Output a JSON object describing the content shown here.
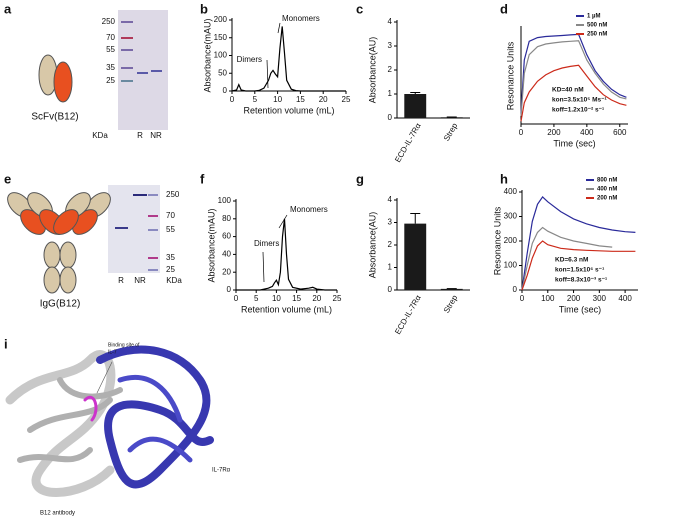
{
  "panels": [
    "a",
    "b",
    "c",
    "d",
    "e",
    "f",
    "g",
    "h",
    "i"
  ],
  "gel_a": {
    "label": "ScFv(B12)",
    "markers": [
      "250",
      "70",
      "55",
      "35",
      "25"
    ],
    "unit": "KDa",
    "lanes": [
      "R",
      "NR"
    ]
  },
  "gel_e": {
    "label": "IgG(B12)",
    "markers": [
      "250",
      "70",
      "55",
      "35",
      "25"
    ],
    "unit": "KDa",
    "lanes": [
      "R",
      "NR"
    ]
  },
  "structure": {
    "site_label": [
      "Binding site of",
      "IL-7"
    ],
    "antibody_label": "B12 antibody",
    "receptor_label": "IL-7Rα"
  },
  "chart_data": [
    {
      "type": "line",
      "xlabel": "Retention volume (mL)",
      "ylabel": "Absorbance(mAU)",
      "x": [
        0,
        1,
        1.5,
        2,
        3,
        5,
        6,
        7,
        8,
        8.5,
        9,
        9.5,
        10,
        10.5,
        11,
        11.5,
        12,
        13,
        14,
        15,
        17,
        20,
        23,
        25
      ],
      "series": [
        {
          "color": "#000000",
          "values": [
            0,
            3,
            18,
            3,
            0,
            0,
            2,
            8,
            30,
            50,
            58,
            48,
            40,
            120,
            182,
            110,
            30,
            5,
            1,
            0,
            0,
            0,
            0,
            0
          ]
        }
      ],
      "xlim": [
        0,
        25
      ],
      "ylim": [
        0,
        200
      ],
      "xticks": [
        0,
        5,
        10,
        15,
        20,
        25
      ],
      "yticks": [
        0,
        50,
        100,
        150,
        200
      ],
      "annotations": [
        "Dimers",
        "Monomers"
      ]
    },
    {
      "type": "bar",
      "ylabel": "Absorbance(AU)",
      "categories": [
        "ECD-IL-7Rα",
        "Strep"
      ],
      "values": [
        1.0,
        0.03
      ],
      "errors": [
        0.06,
        0.01
      ],
      "color": "#1a1a1a",
      "ylim": [
        0,
        4
      ],
      "yticks": [
        0,
        1,
        2,
        3,
        4
      ]
    },
    {
      "type": "line",
      "xlabel": "Time (sec)",
      "ylabel": "Resonance Units",
      "x": [
        0,
        20,
        50,
        100,
        150,
        200,
        250,
        300,
        350,
        400,
        450,
        500,
        550,
        600,
        640
      ],
      "series": [
        {
          "name": "1 µM",
          "color": "#2a2a9a",
          "values": [
            20,
            120,
            155,
            162,
            164,
            165,
            166,
            167,
            168,
            130,
            100,
            80,
            65,
            55,
            50
          ]
        },
        {
          "name": "500 nM",
          "color": "#888888",
          "values": [
            15,
            95,
            130,
            145,
            150,
            152,
            154,
            155,
            156,
            120,
            95,
            75,
            60,
            50,
            47
          ]
        },
        {
          "name": "250 nM",
          "color": "#cc2a1a",
          "values": [
            5,
            40,
            60,
            80,
            92,
            100,
            105,
            108,
            110,
            90,
            70,
            55,
            45,
            38,
            35
          ]
        }
      ],
      "xlim": [
        0,
        650
      ],
      "ylim": [
        0,
        180
      ],
      "xticks": [
        0,
        200,
        400,
        600
      ],
      "annotations": [
        "KD=40 nM",
        "kon=3.5x10⁵ Ms⁻¹",
        "koff=1.2x10⁻² s⁻¹"
      ]
    },
    {
      "type": "line",
      "xlabel": "Retention volume (mL)",
      "ylabel": "Absorbance(mAU)",
      "x": [
        0,
        2,
        4,
        6,
        7,
        8,
        8.5,
        9,
        9.5,
        10,
        10.5,
        11,
        11.5,
        12,
        12.5,
        13,
        14,
        16,
        18,
        19,
        20,
        22,
        25
      ],
      "series": [
        {
          "color": "#000000",
          "values": [
            0,
            0,
            0,
            0,
            1,
            2,
            3,
            4,
            8,
            11,
            6,
            20,
            60,
            80,
            40,
            12,
            3,
            1,
            2,
            3,
            1,
            0,
            0
          ]
        }
      ],
      "xlim": [
        0,
        25
      ],
      "ylim": [
        0,
        100
      ],
      "xticks": [
        0,
        5,
        10,
        15,
        20,
        25
      ],
      "yticks": [
        0,
        20,
        40,
        60,
        80,
        100
      ],
      "annotations": [
        "Dimers",
        "Monomers"
      ]
    },
    {
      "type": "bar",
      "ylabel": "Absorbance(AU)",
      "categories": [
        "ECD-IL-7Rα",
        "Strep"
      ],
      "values": [
        2.95,
        0.05
      ],
      "errors": [
        0.45,
        0.01
      ],
      "color": "#1a1a1a",
      "ylim": [
        0,
        4
      ],
      "yticks": [
        0,
        1,
        2,
        3,
        4
      ]
    },
    {
      "type": "line",
      "xlabel": "Time (sec)",
      "ylabel": "Resonance Units",
      "x": [
        0,
        20,
        40,
        60,
        80,
        100,
        150,
        200,
        250,
        300,
        350,
        400,
        440
      ],
      "series": [
        {
          "name": "800 nM",
          "color": "#2a2a9a",
          "values": [
            0,
            150,
            280,
            350,
            380,
            360,
            320,
            290,
            270,
            255,
            245,
            238,
            235
          ]
        },
        {
          "name": "400 nM",
          "color": "#888888",
          "values": [
            0,
            100,
            190,
            235,
            255,
            240,
            215,
            200,
            190,
            180,
            175,
            null,
            null
          ]
        },
        {
          "name": "200 nM",
          "color": "#cc2a1a",
          "values": [
            0,
            60,
            130,
            180,
            200,
            185,
            170,
            165,
            162,
            160,
            158,
            158,
            158
          ]
        }
      ],
      "xlim": [
        0,
        450
      ],
      "ylim": [
        0,
        400
      ],
      "xticks": [
        0,
        100,
        200,
        300,
        400
      ],
      "yticks": [
        0,
        100,
        200,
        300,
        400
      ],
      "annotations": [
        "KD=6.3 nM",
        "kon=1.5x10⁶ s⁻¹",
        "koff=8.3x10⁻³ s⁻¹"
      ]
    }
  ]
}
